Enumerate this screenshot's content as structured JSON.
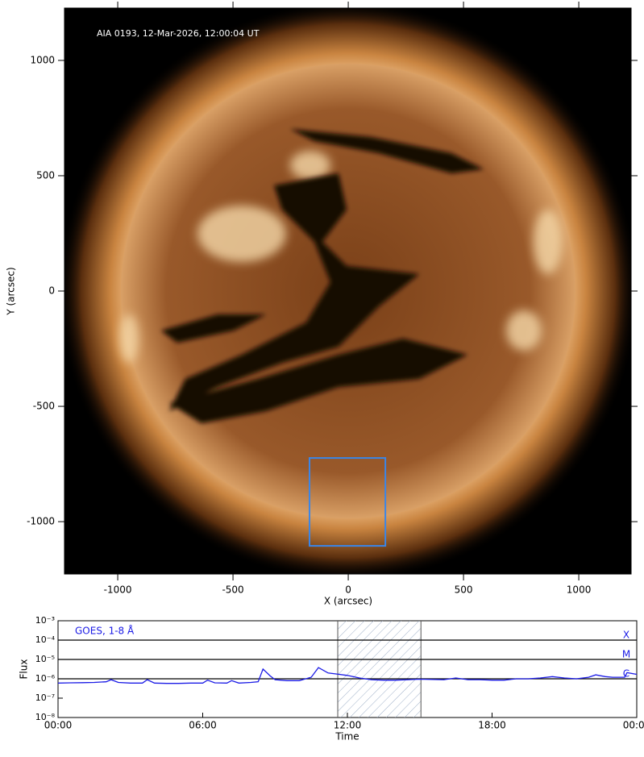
{
  "chart_data": [
    {
      "type": "image",
      "annotation": "AIA 0193, 12-Mar-2026, 12:00:04 UT",
      "xlabel": "X (arcsec)",
      "ylabel": "Y (arcsec)",
      "xlim": [
        -1231,
        1227
      ],
      "ylim": [
        -1227,
        1227
      ],
      "xticks": [
        -1000,
        -500,
        0,
        500,
        1000
      ],
      "yticks": [
        -1000,
        -500,
        0,
        500,
        1000
      ],
      "region": {
        "x": [
          -168,
          161
        ],
        "y": [
          -1105,
          -724
        ],
        "color": "#3a86e8"
      }
    },
    {
      "type": "line",
      "xlabel": "Time",
      "ylabel": "Flux",
      "yscale": "log",
      "xlim": [
        0,
        24
      ],
      "ylim": [
        1e-08,
        0.001
      ],
      "xticks": [
        {
          "value": 0,
          "label": "00:00"
        },
        {
          "value": 6,
          "label": "06:00"
        },
        {
          "value": 12,
          "label": "12:00"
        },
        {
          "value": 18,
          "label": "18:00"
        },
        {
          "value": 24,
          "label": "00:00"
        }
      ],
      "yticks": [
        {
          "value": 1e-08,
          "label": "10⁻⁸"
        },
        {
          "value": 1e-07,
          "label": "10⁻⁷"
        },
        {
          "value": 1e-06,
          "label": "10⁻⁶"
        },
        {
          "value": 1e-05,
          "label": "10⁻⁵"
        },
        {
          "value": 0.0001,
          "label": "10⁻⁴"
        },
        {
          "value": 0.001,
          "label": "10⁻³"
        }
      ],
      "levels": [
        {
          "value": 0.0001,
          "label": "X"
        },
        {
          "value": 1e-05,
          "label": "M"
        },
        {
          "value": 1e-06,
          "label": "C"
        }
      ],
      "span": [
        11.6,
        15.05
      ],
      "series": [
        {
          "name": "GOES, 1-8 Å",
          "color": "#1a1ae6",
          "x": [
            0,
            0.5,
            1,
            1.5,
            2,
            2.2,
            2.5,
            3,
            3.5,
            3.7,
            4,
            4.5,
            5,
            5.5,
            6,
            6.2,
            6.5,
            7,
            7.2,
            7.5,
            8,
            8.3,
            8.5,
            8.8,
            9,
            9.5,
            10,
            10.5,
            10.8,
            11.2,
            11.5,
            12,
            12.5,
            13,
            13.5,
            14,
            14.5,
            15,
            16,
            16.5,
            17,
            17.5,
            18,
            18.5,
            19,
            19.5,
            20,
            20.5,
            21,
            21.5,
            22,
            22.3,
            22.7,
            23,
            23.5,
            23.6,
            24
          ],
          "values": [
            6e-07,
            6.2e-07,
            6.3e-07,
            6.5e-07,
            7e-07,
            9e-07,
            6.5e-07,
            6e-07,
            6e-07,
            9e-07,
            6e-07,
            5.8e-07,
            5.8e-07,
            6e-07,
            6e-07,
            8.5e-07,
            6.2e-07,
            6e-07,
            8e-07,
            6e-07,
            6.5e-07,
            7e-07,
            3.2e-06,
            1.4e-06,
            9e-07,
            8e-07,
            8e-07,
            1.2e-06,
            3.8e-06,
            2e-06,
            1.8e-06,
            1.5e-06,
            1.1e-06,
            9e-07,
            8.5e-07,
            8.5e-07,
            9e-07,
            9.5e-07,
            9e-07,
            1.1e-06,
            9e-07,
            9e-07,
            8.5e-07,
            8.5e-07,
            1e-06,
            1e-06,
            1.1e-06,
            1.3e-06,
            1.1e-06,
            1e-06,
            1.2e-06,
            1.6e-06,
            1.3e-06,
            1.2e-06,
            1.2e-06,
            2.1e-06,
            1.7e-06
          ]
        }
      ]
    }
  ]
}
